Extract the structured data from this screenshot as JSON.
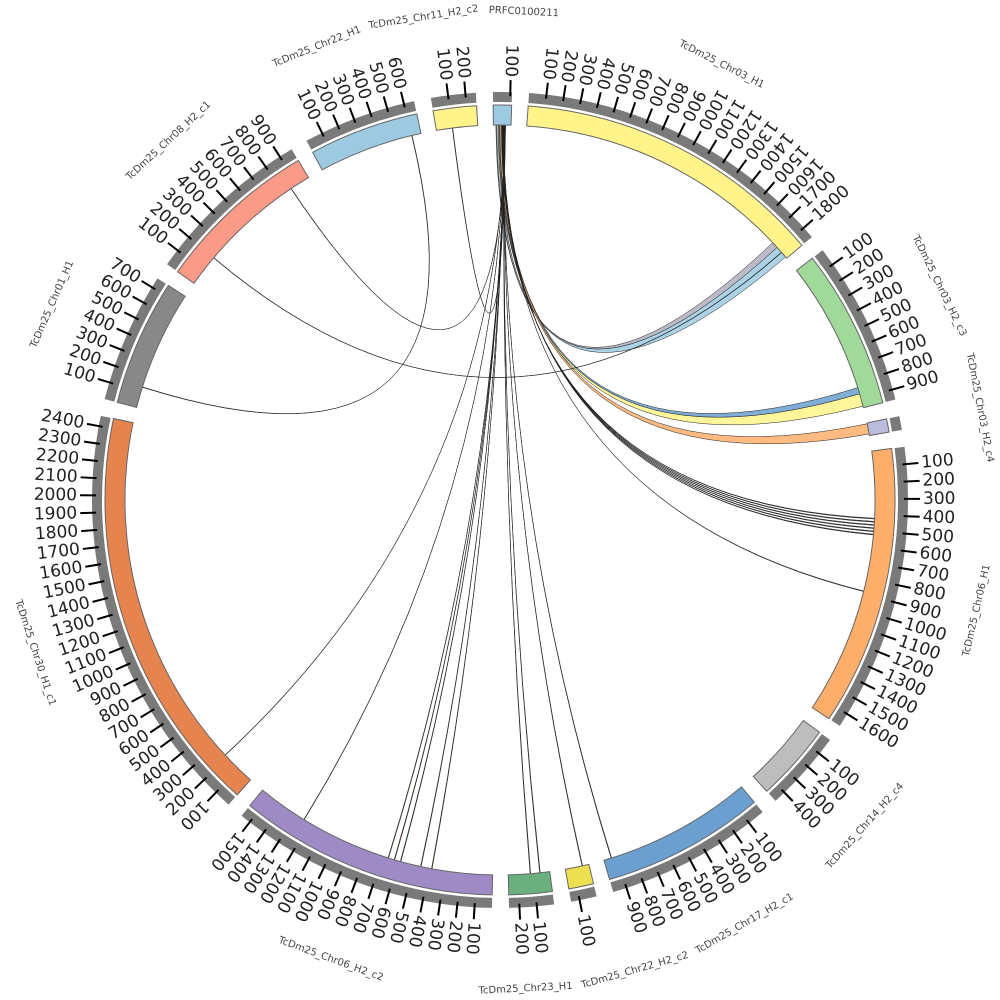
{
  "chart_data": {
    "type": "circos",
    "tick_interval": 100,
    "segments": [
      {
        "name": "PRFC0100211",
        "length": 110,
        "color": "#9ecae1"
      },
      {
        "name": "TcDm25_Chr03_H1",
        "length": 1870,
        "color": "#fff38a"
      },
      {
        "name": "TcDm25_Chr03_H2_c3",
        "length": 960,
        "color": "#a1d99b"
      },
      {
        "name": "TcDm25_Chr03_H2_c4",
        "length": 80,
        "color": "#bcbddc"
      },
      {
        "name": "TcDm25_Chr06_H1",
        "length": 1680,
        "color": "#fdae6b"
      },
      {
        "name": "TcDm25_Chr14_H2_c4",
        "length": 470,
        "color": "#bdbdbd"
      },
      {
        "name": "TcDm25_Chr17_H2_c1",
        "length": 980,
        "color": "#6a9fcf"
      },
      {
        "name": "TcDm25_Chr22_H2_c2",
        "length": 150,
        "color": "#ede050"
      },
      {
        "name": "TcDm25_Chr23_H1",
        "length": 260,
        "color": "#6ab07f"
      },
      {
        "name": "TcDm25_Chr06_H2_c2",
        "length": 1560,
        "color": "#9e8ac4"
      },
      {
        "name": "TcDm25_Chr30_H1_c1",
        "length": 2460,
        "color": "#e6844f"
      },
      {
        "name": "TcDm25_Chr01_H1",
        "length": 760,
        "color": "#888888"
      },
      {
        "name": "TcDm25_Chr08_H2_c1",
        "length": 980,
        "color": "#fb9a87"
      },
      {
        "name": "TcDm25_Chr22_H1",
        "length": 660,
        "color": "#9ecae1"
      },
      {
        "name": "TcDm25_Chr11_H2_c2",
        "length": 260,
        "color": "#fff38a"
      }
    ],
    "links": [
      {
        "from": [
          0,
          15,
          30
        ],
        "to": [
          1,
          1780,
          1860
        ],
        "color": "#9ecae1"
      },
      {
        "from": [
          0,
          20,
          35
        ],
        "to": [
          1,
          1740,
          1780
        ],
        "color": "#b0b0c0"
      },
      {
        "from": [
          0,
          30,
          55
        ],
        "to": [
          2,
          870,
          950
        ],
        "color": "#fff38a"
      },
      {
        "from": [
          0,
          35,
          50
        ],
        "to": [
          2,
          830,
          870
        ],
        "color": "#6a9fcf"
      },
      {
        "from": [
          0,
          40,
          55
        ],
        "to": [
          3,
          5,
          70
        ],
        "color": "#fdae6b"
      },
      {
        "from": [
          0,
          50,
          52
        ],
        "to": [
          4,
          420,
          425
        ],
        "color": "#333333"
      },
      {
        "from": [
          0,
          52,
          54
        ],
        "to": [
          4,
          440,
          445
        ],
        "color": "#333333"
      },
      {
        "from": [
          0,
          54,
          56
        ],
        "to": [
          4,
          460,
          465
        ],
        "color": "#333333"
      },
      {
        "from": [
          0,
          56,
          58
        ],
        "to": [
          4,
          480,
          485
        ],
        "color": "#333333"
      },
      {
        "from": [
          0,
          58,
          60
        ],
        "to": [
          4,
          500,
          505
        ],
        "color": "#333333"
      },
      {
        "from": [
          0,
          60,
          62
        ],
        "to": [
          4,
          520,
          525
        ],
        "color": "#333333"
      },
      {
        "from": [
          0,
          62,
          63
        ],
        "to": [
          4,
          880,
          884
        ],
        "color": "#444466"
      },
      {
        "from": [
          0,
          63,
          64
        ],
        "to": [
          6,
          930,
          934
        ],
        "color": "#6a3d1a"
      },
      {
        "from": [
          0,
          64,
          65
        ],
        "to": [
          7,
          40,
          44
        ],
        "color": "#336655"
      },
      {
        "from": [
          0,
          65,
          66
        ],
        "to": [
          8,
          60,
          64
        ],
        "color": "#8a5a2a"
      },
      {
        "from": [
          0,
          66,
          67
        ],
        "to": [
          8,
          120,
          124
        ],
        "color": "#556b2f"
      },
      {
        "from": [
          0,
          67,
          68
        ],
        "to": [
          9,
          380,
          384
        ],
        "color": "#8b6914"
      },
      {
        "from": [
          0,
          68,
          69
        ],
        "to": [
          9,
          450,
          454
        ],
        "color": "#556b2f"
      },
      {
        "from": [
          0,
          69,
          70
        ],
        "to": [
          9,
          580,
          584
        ],
        "color": "#2f4f4f"
      },
      {
        "from": [
          0,
          70,
          71
        ],
        "to": [
          9,
          620,
          624
        ],
        "color": "#8b4513"
      },
      {
        "from": [
          0,
          71,
          72
        ],
        "to": [
          9,
          660,
          664
        ],
        "color": "#6b8e23"
      },
      {
        "from": [
          0,
          72,
          73
        ],
        "to": [
          9,
          1240,
          1243
        ],
        "color": "#333344"
      },
      {
        "from": [
          0,
          73,
          74
        ],
        "to": [
          10,
          220,
          223
        ],
        "color": "#333344"
      },
      {
        "from": [
          0,
          74,
          75
        ],
        "to": [
          12,
          850,
          853
        ],
        "color": "#444444"
      },
      {
        "from": [
          0,
          75,
          76
        ],
        "to": [
          14,
          100,
          103
        ],
        "color": "#6b6b2f"
      },
      {
        "from": [
          11,
          130,
          133
        ],
        "to": [
          13,
          600,
          603
        ],
        "color": "#a0522d"
      },
      {
        "from": [
          12,
          200,
          203
        ],
        "to": [
          1,
          1820,
          1823
        ],
        "color": "#333355"
      }
    ]
  }
}
